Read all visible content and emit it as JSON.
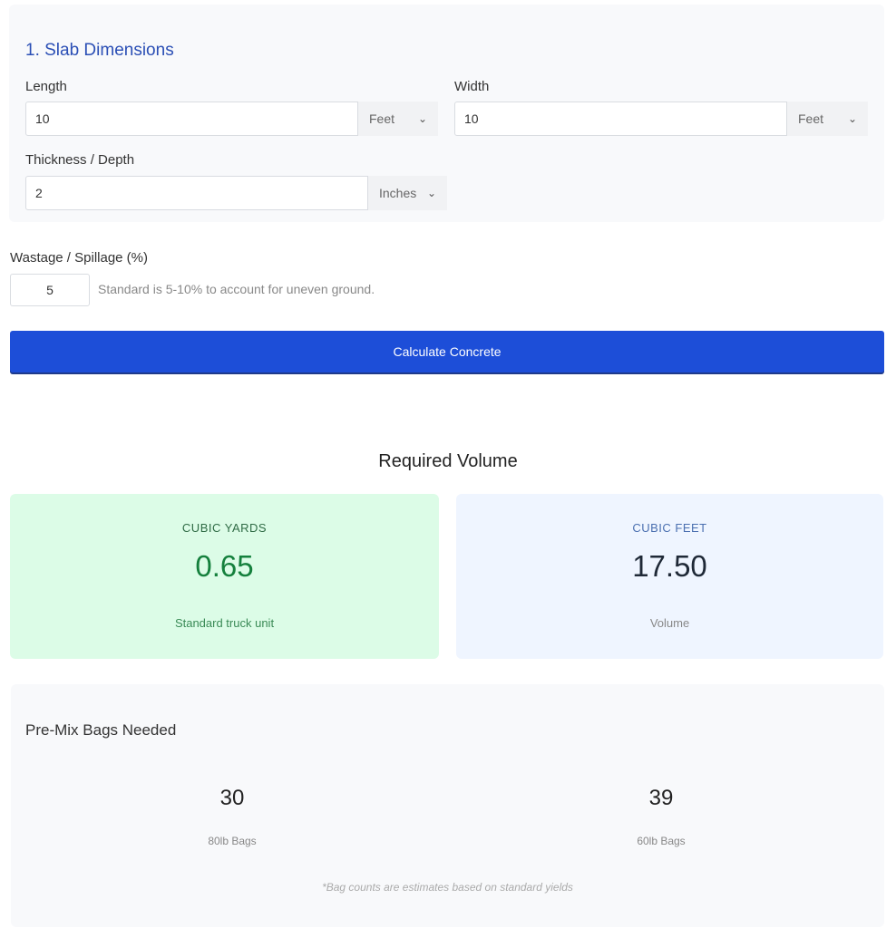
{
  "slab": {
    "title": "1. Slab Dimensions",
    "length": {
      "label": "Length",
      "value": "10",
      "unit": "Feet"
    },
    "width": {
      "label": "Width",
      "value": "10",
      "unit": "Feet"
    },
    "thickness": {
      "label": "Thickness / Depth",
      "value": "2",
      "unit": "Inches"
    }
  },
  "wastage": {
    "label": "Wastage / Spillage (%)",
    "value": "5",
    "hint": "Standard is 5-10% to account for uneven ground."
  },
  "calculate_label": "Calculate Concrete",
  "results": {
    "title": "Required Volume",
    "yards": {
      "caption": "CUBIC YARDS",
      "value": "0.65",
      "sub": "Standard truck unit"
    },
    "feet": {
      "caption": "CUBIC FEET",
      "value": "17.50",
      "sub": "Volume"
    }
  },
  "bags": {
    "title": "Pre-Mix Bags Needed",
    "items": [
      {
        "value": "30",
        "label": "80lb Bags"
      },
      {
        "value": "39",
        "label": "60lb Bags"
      }
    ],
    "note": "*Bag counts are estimates based on standard yields"
  },
  "colors": {
    "accent": "#1d4ed8",
    "green_bg": "#dcfce7",
    "green_text": "#15803d",
    "blue_bg": "#eff6ff"
  }
}
